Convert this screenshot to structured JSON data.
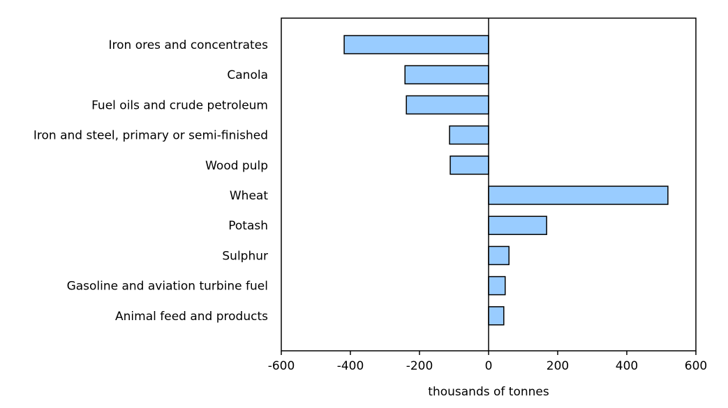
{
  "chart_data": {
    "type": "bar",
    "orientation": "horizontal",
    "title": "",
    "xlabel": "thousands of tonnes",
    "ylabel": "",
    "categories": [
      "Iron ores and concentrates",
      "Canola",
      "Fuel oils and crude petroleum",
      "Iron and steel, primary or semi-finished",
      "Wood pulp",
      "Wheat",
      "Potash",
      "Sulphur",
      "Gasoline and aviation turbine fuel",
      "Animal feed and products"
    ],
    "values": [
      -418,
      -242,
      -238,
      -113,
      -111,
      519,
      168,
      59,
      48,
      44
    ],
    "xlim": [
      -600,
      600
    ],
    "xticks": [
      -600,
      -400,
      -200,
      0,
      200,
      400,
      600
    ],
    "xtick_labels": [
      "-600",
      "-400",
      "-200",
      "0",
      "200",
      "400",
      "600"
    ],
    "grid": false,
    "colors": {
      "bar": "#99ccff",
      "stroke": "#000000"
    }
  }
}
